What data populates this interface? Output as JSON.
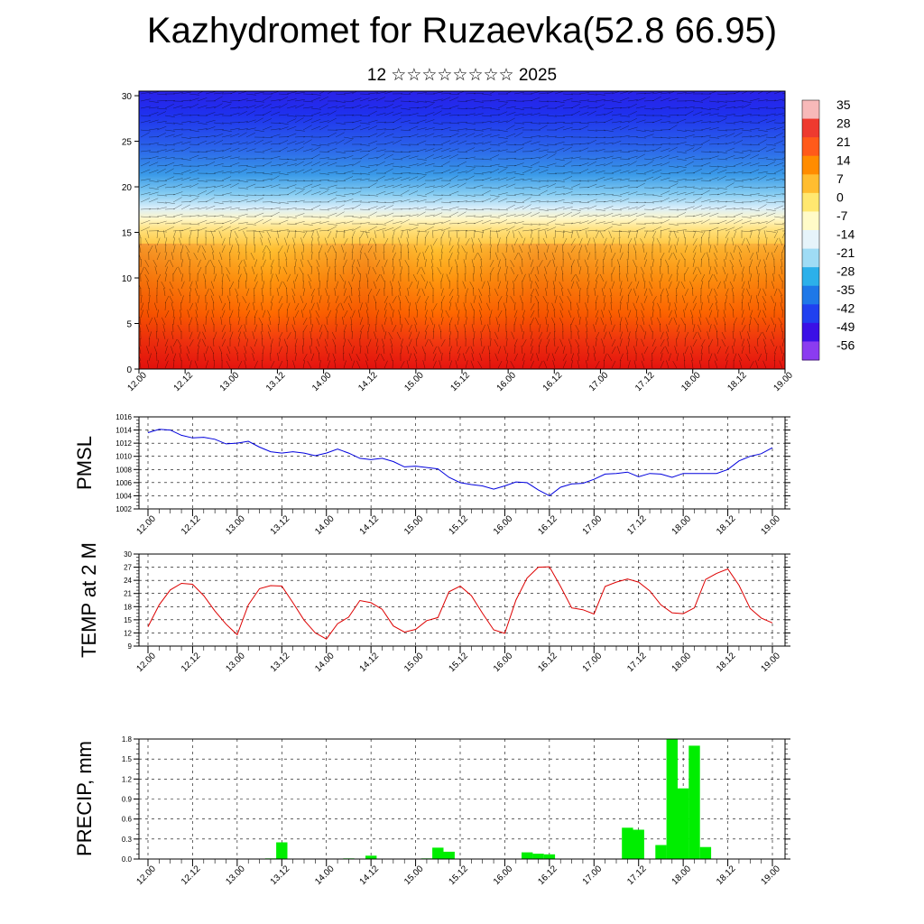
{
  "title": "Kazhydromet for Ruzaevka(52.8 66.95)",
  "subtitle": "12 ☆☆☆☆☆☆☆☆ 2025",
  "x_ticks": [
    "12.00",
    "12.12",
    "13.00",
    "13.12",
    "14.00",
    "14.12",
    "15.00",
    "15.12",
    "16.00",
    "16.12",
    "17.00",
    "17.12",
    "18.00",
    "18.12",
    "19.00"
  ],
  "chart_data": [
    {
      "type": "heatmap",
      "x_range": [
        12.0,
        19.0
      ],
      "yticks": [
        "0",
        "5",
        "10",
        "15",
        "20",
        "25",
        "30"
      ],
      "ylim": [
        0,
        30.5
      ],
      "colorbar": {
        "labels": [
          "35",
          "28",
          "21",
          "14",
          "7",
          "0",
          "-7",
          "-14",
          "-21",
          "-28",
          "-35",
          "-42",
          "-49",
          "-56"
        ],
        "colors": [
          "#f7b9b9",
          "#ee3a2f",
          "#ff5a1a",
          "#ff8c00",
          "#ffbd30",
          "#ffe870",
          "#fffbc8",
          "#e6f4fa",
          "#9fdcf5",
          "#2cb0ea",
          "#1e78e8",
          "#2040f0",
          "#3b10e6",
          "#8b3cf0"
        ]
      }
    },
    {
      "type": "line",
      "ylabel": "PMSL",
      "ylim": [
        1002,
        1016
      ],
      "yticks": [
        "1016",
        "1014",
        "1012",
        "1010",
        "1008",
        "1006",
        "1004",
        "1002"
      ],
      "color": "#0000dd",
      "values": [
        1013.6,
        1014.1,
        1014.0,
        1013.2,
        1012.8,
        1012.9,
        1012.6,
        1011.9,
        1012.0,
        1012.3,
        1011.4,
        1010.7,
        1010.5,
        1010.7,
        1010.5,
        1010.1,
        1010.5,
        1011.1,
        1010.5,
        1009.7,
        1009.5,
        1009.7,
        1009.2,
        1008.4,
        1008.5,
        1008.3,
        1008.1,
        1006.8,
        1006.0,
        1005.7,
        1005.5,
        1005.0,
        1005.5,
        1006.1,
        1006.0,
        1004.9,
        1004.0,
        1005.3,
        1005.8,
        1005.9,
        1006.5,
        1007.3,
        1007.4,
        1007.6,
        1006.9,
        1007.4,
        1007.3,
        1006.8,
        1007.4,
        1007.4,
        1007.4,
        1007.4,
        1008.0,
        1009.3,
        1010.0,
        1010.4,
        1011.3
      ]
    },
    {
      "type": "line",
      "ylabel": "TEMP at 2 M",
      "ylim": [
        9,
        30
      ],
      "yticks": [
        "30",
        "27",
        "24",
        "21",
        "18",
        "15",
        "12",
        "9"
      ],
      "color": "#dd0000",
      "values": [
        13.4,
        18.4,
        21.8,
        23.3,
        23.1,
        20.5,
        17.0,
        14.0,
        11.6,
        18.4,
        22.1,
        22.8,
        22.7,
        18.9,
        14.9,
        12.0,
        10.6,
        14.1,
        15.6,
        19.4,
        18.9,
        17.4,
        13.6,
        12.2,
        12.8,
        14.8,
        15.5,
        21.4,
        22.7,
        20.5,
        16.5,
        12.7,
        11.9,
        19.5,
        24.5,
        27.0,
        27.1,
        22.6,
        17.7,
        17.3,
        16.3,
        22.6,
        23.6,
        24.3,
        23.6,
        21.6,
        18.4,
        16.6,
        16.4,
        17.7,
        24.2,
        25.6,
        26.6,
        22.9,
        17.6,
        15.4,
        14.3
      ]
    },
    {
      "type": "bar",
      "ylabel": "PRECIP, mm",
      "ylim": [
        0,
        1.8
      ],
      "yticks": [
        "1.8",
        "1.5",
        "1.2",
        "0.9",
        "0.6",
        "0.3",
        "0.0"
      ],
      "color": "#00ee00",
      "values": [
        0,
        0,
        0,
        0,
        0,
        0,
        0,
        0,
        0,
        0,
        0,
        0.01,
        0.25,
        0,
        0,
        0,
        0,
        0,
        0.01,
        0,
        0.05,
        0,
        0,
        0,
        0,
        0.01,
        0.17,
        0.11,
        0,
        0,
        0,
        0,
        0,
        0,
        0.1,
        0.08,
        0.07,
        0,
        0,
        0,
        0,
        0,
        0,
        0.47,
        0.44,
        0,
        0.21,
        1.81,
        1.06,
        1.7,
        0.18,
        0,
        0,
        0,
        0,
        0
      ]
    }
  ]
}
